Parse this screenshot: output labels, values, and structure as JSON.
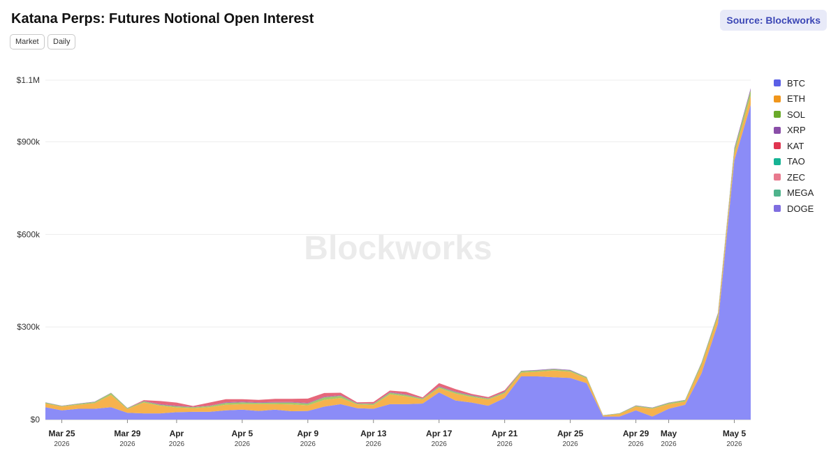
{
  "header": {
    "title": "Katana Perps: Futures Notional Open Interest",
    "source": "Source: Blockworks",
    "chips": [
      "Market",
      "Daily"
    ]
  },
  "watermark": "Blockworks",
  "chart_data": {
    "type": "area",
    "stacked": true,
    "title": "Katana Perps: Futures Notional Open Interest",
    "ylim": [
      0,
      1100000
    ],
    "y_ticks": [
      0,
      300000,
      600000,
      900000,
      1100000
    ],
    "y_tick_labels": [
      "$0",
      "$300k",
      "$600k",
      "$900k",
      "$1.1M"
    ],
    "x_ticks": [
      {
        "index": 1,
        "label": "Mar 25",
        "year": "2026"
      },
      {
        "index": 5,
        "label": "Mar 29",
        "year": "2026"
      },
      {
        "index": 8,
        "label": "Apr",
        "year": "2026"
      },
      {
        "index": 12,
        "label": "Apr 5",
        "year": "2026"
      },
      {
        "index": 16,
        "label": "Apr 9",
        "year": "2026"
      },
      {
        "index": 20,
        "label": "Apr 13",
        "year": "2026"
      },
      {
        "index": 24,
        "label": "Apr 17",
        "year": "2026"
      },
      {
        "index": 28,
        "label": "Apr 21",
        "year": "2026"
      },
      {
        "index": 32,
        "label": "Apr 25",
        "year": "2026"
      },
      {
        "index": 36,
        "label": "Apr 29",
        "year": "2026"
      },
      {
        "index": 38,
        "label": "May",
        "year": "2026"
      },
      {
        "index": 42,
        "label": "May 5",
        "year": "2026"
      }
    ],
    "x": [
      "Mar 24",
      "Mar 25",
      "Mar 26",
      "Mar 27",
      "Mar 28",
      "Mar 29",
      "Mar 30",
      "Mar 31",
      "Apr 1",
      "Apr 2",
      "Apr 3",
      "Apr 4",
      "Apr 5",
      "Apr 6",
      "Apr 7",
      "Apr 8",
      "Apr 9",
      "Apr 10",
      "Apr 11",
      "Apr 12",
      "Apr 13",
      "Apr 14",
      "Apr 15",
      "Apr 16",
      "Apr 17",
      "Apr 18",
      "Apr 19",
      "Apr 20",
      "Apr 21",
      "Apr 22",
      "Apr 23",
      "Apr 24",
      "Apr 25",
      "Apr 26",
      "Apr 27",
      "Apr 28",
      "Apr 29",
      "Apr 30",
      "May 1",
      "May 2",
      "May 3",
      "May 4",
      "May 5",
      "May 6"
    ],
    "series": [
      {
        "name": "BTC",
        "color": "#8b8cf7",
        "values": [
          40000,
          30000,
          35000,
          35000,
          40000,
          22000,
          20000,
          20000,
          24000,
          25000,
          25000,
          30000,
          32000,
          28000,
          32000,
          27000,
          28000,
          42000,
          50000,
          37000,
          35000,
          50000,
          50000,
          52000,
          88000,
          62000,
          55000,
          45000,
          70000,
          140000,
          140000,
          137000,
          135000,
          118000,
          10000,
          10000,
          30000,
          10000,
          35000,
          48000,
          150000,
          310000,
          840000,
          1020000
        ]
      },
      {
        "name": "ETH",
        "color": "#f6b24e",
        "values": [
          12000,
          12000,
          13000,
          18000,
          40000,
          12000,
          35000,
          25000,
          15000,
          12000,
          15000,
          18000,
          18000,
          22000,
          18000,
          22000,
          18000,
          22000,
          20000,
          12000,
          12000,
          32000,
          25000,
          13000,
          14000,
          22000,
          18000,
          20000,
          15000,
          12000,
          15000,
          22000,
          20000,
          15000,
          3000,
          8000,
          12000,
          25000,
          15000,
          10000,
          25000,
          22000,
          20000,
          30000
        ]
      },
      {
        "name": "SOL",
        "color": "#a4c96b",
        "values": [
          3000,
          2000,
          3000,
          4000,
          6000,
          3000,
          4000,
          3000,
          4000,
          3000,
          4000,
          6000,
          6000,
          4000,
          5000,
          6000,
          6000,
          8000,
          7000,
          3000,
          4000,
          5000,
          5000,
          3000,
          4000,
          5000,
          4000,
          3000,
          4000,
          5000,
          4000,
          4000,
          4000,
          4000,
          1000,
          2000,
          3000,
          3000,
          4000,
          5000,
          8000,
          10000,
          15000,
          18000
        ]
      },
      {
        "name": "XRP",
        "color": "#9a6ab8",
        "values": [
          1000,
          1000,
          1000,
          1000,
          1000,
          1000,
          1000,
          2000,
          2000,
          1000,
          1000,
          2000,
          2000,
          2000,
          2000,
          2000,
          2000,
          2000,
          2000,
          1000,
          1000,
          2000,
          2000,
          1000,
          2000,
          2000,
          2000,
          1000,
          2000,
          1000,
          2000,
          2000,
          2000,
          1000,
          500,
          500,
          1000,
          1000,
          1000,
          1000,
          2000,
          3000,
          5000,
          6000
        ]
      },
      {
        "name": "KAT",
        "color": "#e6677a",
        "values": [
          0,
          0,
          0,
          0,
          0,
          0,
          3000,
          10000,
          10000,
          3000,
          10000,
          10000,
          8000,
          8000,
          10000,
          10000,
          14000,
          12000,
          8000,
          3000,
          5000,
          5000,
          8000,
          3000,
          10000,
          8000,
          4000,
          4000,
          4000,
          0,
          0,
          0,
          0,
          0,
          0,
          0,
          0,
          0,
          0,
          0,
          0,
          0,
          0,
          0
        ]
      },
      {
        "name": "TAO",
        "color": "#3fbfa6",
        "values": [
          0,
          0,
          0,
          0,
          0,
          0,
          0,
          0,
          0,
          0,
          0,
          0,
          0,
          0,
          0,
          0,
          0,
          0,
          0,
          0,
          0,
          0,
          0,
          0,
          0,
          0,
          0,
          0,
          0,
          0,
          0,
          0,
          0,
          0,
          0,
          0,
          0,
          0,
          0,
          0,
          0,
          0,
          0,
          0
        ]
      },
      {
        "name": "ZEC",
        "color": "#f08ba0",
        "values": [
          0,
          0,
          0,
          0,
          0,
          0,
          0,
          0,
          0,
          0,
          0,
          0,
          0,
          0,
          0,
          0,
          0,
          0,
          0,
          0,
          0,
          0,
          0,
          0,
          0,
          0,
          0,
          0,
          0,
          0,
          0,
          0,
          0,
          0,
          0,
          0,
          0,
          0,
          0,
          0,
          0,
          0,
          0,
          0
        ]
      },
      {
        "name": "MEGA",
        "color": "#6cc4a4",
        "values": [
          0,
          0,
          0,
          0,
          0,
          0,
          0,
          0,
          0,
          0,
          0,
          0,
          0,
          0,
          0,
          0,
          0,
          0,
          0,
          0,
          0,
          0,
          0,
          0,
          0,
          0,
          0,
          0,
          0,
          0,
          0,
          0,
          0,
          0,
          0,
          0,
          0,
          0,
          0,
          0,
          0,
          0,
          0,
          0
        ]
      },
      {
        "name": "DOGE",
        "color": "#8f7fe0",
        "values": [
          0,
          0,
          0,
          0,
          0,
          0,
          0,
          0,
          0,
          0,
          0,
          0,
          0,
          0,
          0,
          0,
          0,
          0,
          0,
          0,
          0,
          0,
          0,
          0,
          0,
          0,
          0,
          0,
          0,
          0,
          0,
          0,
          0,
          0,
          0,
          0,
          0,
          0,
          0,
          0,
          0,
          0,
          0,
          0
        ]
      }
    ],
    "legend": {
      "position": "right",
      "items": [
        {
          "name": "BTC",
          "color": "#5a5fe6"
        },
        {
          "name": "ETH",
          "color": "#f0961c"
        },
        {
          "name": "SOL",
          "color": "#6aaa2a"
        },
        {
          "name": "XRP",
          "color": "#8a4ea8"
        },
        {
          "name": "KAT",
          "color": "#e03550"
        },
        {
          "name": "TAO",
          "color": "#16b394"
        },
        {
          "name": "ZEC",
          "color": "#e87a8e"
        },
        {
          "name": "MEGA",
          "color": "#4fb38c"
        },
        {
          "name": "DOGE",
          "color": "#7f6ee0"
        }
      ]
    },
    "grid": true
  }
}
